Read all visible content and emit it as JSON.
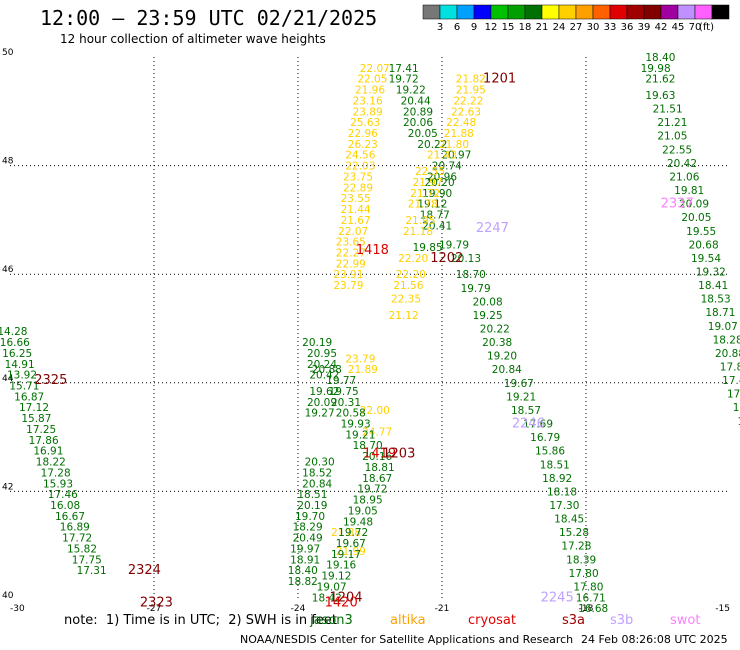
{
  "header": {
    "title": "12:00 – 23:59 UTC 02/21/2025",
    "subtitle": "12 hour collection of altimeter wave heights"
  },
  "colorbar": {
    "colors": [
      "#777777",
      "#00e0e0",
      "#00a0ff",
      "#0000ff",
      "#00c000",
      "#00a000",
      "#007000",
      "#ffff00",
      "#ffd000",
      "#ffa000",
      "#ff6000",
      "#e00000",
      "#a00000",
      "#800000",
      "#a000a0",
      "#c090ff",
      "#ff60ff",
      "#000000"
    ],
    "labels": [
      "3",
      "6",
      "9",
      "12",
      "15",
      "18",
      "21",
      "24",
      "27",
      "30",
      "33",
      "36",
      "39",
      "42",
      "45",
      "70",
      "(ft)"
    ]
  },
  "footer": {
    "note": "note:  1) Time is in UTC;  2) SWH is in feet",
    "credit": "NOAA/NESDIS Center for Satellite Applications and Research",
    "timestamp": "24 Feb 08:26:08 UTC 2025",
    "legend": [
      {
        "name": "jason3",
        "color": "#007000"
      },
      {
        "name": "altika",
        "color": "#ffa000"
      },
      {
        "name": "cryosat",
        "color": "#e00000"
      },
      {
        "name": "s3a",
        "color": "#a00000"
      },
      {
        "name": "s3b",
        "color": "#c0a0ff"
      },
      {
        "name": "swot",
        "color": "#ff80ff"
      }
    ]
  },
  "chart_data": {
    "type": "scatter",
    "xlim": [
      -30,
      -15
    ],
    "ylim": [
      40,
      50
    ],
    "xticks": [
      -30,
      -27,
      -24,
      -21,
      -18,
      -15
    ],
    "yticks": [
      40,
      42,
      44,
      46,
      48,
      50
    ],
    "grid": true,
    "passes": [
      {
        "satellite": "s3b",
        "color": "#007000",
        "points": [
          [
            -29.95,
            44.95,
            "14.28"
          ],
          [
            -29.9,
            44.75,
            "16.66"
          ],
          [
            -29.85,
            44.55,
            "16.25"
          ],
          [
            -29.8,
            44.35,
            "14.91"
          ],
          [
            -29.75,
            44.15,
            "13.92"
          ],
          [
            -29.7,
            43.95,
            "15.71"
          ],
          [
            -29.6,
            43.75,
            "16.87"
          ],
          [
            -29.5,
            43.55,
            "17.12"
          ],
          [
            -29.45,
            43.35,
            "15.87"
          ],
          [
            -29.35,
            43.15,
            "17.25"
          ],
          [
            -29.3,
            42.95,
            "17.86"
          ],
          [
            -29.2,
            42.75,
            "16.91"
          ],
          [
            -29.15,
            42.55,
            "18.22"
          ],
          [
            -29.05,
            42.35,
            "17.28"
          ],
          [
            -29.0,
            42.15,
            "15.93"
          ],
          [
            -28.9,
            41.95,
            "17.46"
          ],
          [
            -28.85,
            41.75,
            "16.08"
          ],
          [
            -28.75,
            41.55,
            "16.67"
          ],
          [
            -28.65,
            41.35,
            "16.89"
          ],
          [
            -28.6,
            41.15,
            "17.72"
          ],
          [
            -28.5,
            40.95,
            "15.82"
          ],
          [
            -28.4,
            40.75,
            "17.75"
          ],
          [
            -28.3,
            40.55,
            "17.31"
          ]
        ]
      },
      {
        "satellite": "s3a",
        "color": "#ffd000",
        "points": [
          [
            -22.4,
            49.8,
            "22.07"
          ],
          [
            -22.45,
            49.6,
            "22.05"
          ],
          [
            -22.5,
            49.4,
            "21.96"
          ],
          [
            -22.55,
            49.2,
            "23.16"
          ],
          [
            -22.55,
            49.0,
            "23.89"
          ],
          [
            -22.6,
            48.8,
            "25.63"
          ],
          [
            -22.65,
            48.6,
            "22.96"
          ],
          [
            -22.65,
            48.4,
            "26.23"
          ],
          [
            -22.7,
            48.2,
            "24.56"
          ],
          [
            -22.7,
            48.0,
            "22.03"
          ],
          [
            -22.75,
            47.8,
            "23.75"
          ],
          [
            -22.75,
            47.6,
            "22.89"
          ],
          [
            -22.8,
            47.4,
            "23.55"
          ],
          [
            -22.8,
            47.2,
            "21.44"
          ],
          [
            -22.8,
            47.0,
            "21.67"
          ],
          [
            -22.85,
            46.8,
            "22.07"
          ],
          [
            -22.9,
            46.6,
            "23.65"
          ],
          [
            -22.9,
            46.4,
            "22.27"
          ],
          [
            -22.9,
            46.2,
            "22.99"
          ],
          [
            -22.95,
            46.0,
            "23.91"
          ],
          [
            -22.95,
            45.8,
            "23.79"
          ],
          [
            -22.7,
            44.45,
            "23.79"
          ],
          [
            -22.65,
            44.25,
            "21.89"
          ],
          [
            -22.4,
            43.5,
            "22.00"
          ],
          [
            -22.35,
            43.1,
            "24.77"
          ],
          [
            -23.0,
            41.25,
            "21.88"
          ],
          [
            -22.9,
            40.9,
            "21.99"
          ]
        ]
      },
      {
        "satellite": "s3a",
        "color": "#007000",
        "points": [
          [
            -21.8,
            49.8,
            "17.41"
          ],
          [
            -21.8,
            49.6,
            "19.72"
          ],
          [
            -21.65,
            49.4,
            "19.22"
          ],
          [
            -21.55,
            49.2,
            "20.44"
          ],
          [
            -21.5,
            49.0,
            "20.89"
          ],
          [
            -21.5,
            48.8,
            "20.06"
          ],
          [
            -21.4,
            48.6,
            "20.05"
          ],
          [
            -21.2,
            48.4,
            "20.22"
          ],
          [
            -20.7,
            48.2,
            "20.97"
          ],
          [
            -20.9,
            48.0,
            "20.74"
          ],
          [
            -21.0,
            47.8,
            "20.96"
          ],
          [
            -21.05,
            47.7,
            "20.20"
          ],
          [
            -21.1,
            47.5,
            "19.90"
          ],
          [
            -21.2,
            47.3,
            "19.12"
          ],
          [
            -21.15,
            47.1,
            "18.77"
          ],
          [
            -21.1,
            46.9,
            "20.41"
          ],
          [
            -21.3,
            46.5,
            "19.85"
          ],
          [
            -20.75,
            46.55,
            "19.79"
          ],
          [
            -20.5,
            46.3,
            "20.13"
          ],
          [
            -20.4,
            46.0,
            "18.70"
          ],
          [
            -20.3,
            45.75,
            "19.79"
          ],
          [
            -20.05,
            45.5,
            "20.08"
          ],
          [
            -20.05,
            45.25,
            "19.25"
          ],
          [
            -19.9,
            45.0,
            "20.22"
          ],
          [
            -19.85,
            44.75,
            "20.38"
          ],
          [
            -19.75,
            44.5,
            "19.20"
          ],
          [
            -19.65,
            44.25,
            "20.84"
          ],
          [
            -19.4,
            44.0,
            "19.67"
          ],
          [
            -19.35,
            43.75,
            "19.21"
          ],
          [
            -19.25,
            43.5,
            "18.57"
          ],
          [
            -19.0,
            43.25,
            "17.69"
          ],
          [
            -18.85,
            43.0,
            "16.79"
          ],
          [
            -18.75,
            42.75,
            "15.86"
          ],
          [
            -18.65,
            42.5,
            "18.51"
          ],
          [
            -18.6,
            42.25,
            "18.92"
          ],
          [
            -18.5,
            42.0,
            "18.18"
          ],
          [
            -18.45,
            41.75,
            "17.30"
          ],
          [
            -18.35,
            41.5,
            "18.45"
          ],
          [
            -18.25,
            41.25,
            "15.28"
          ],
          [
            -18.2,
            41.0,
            "17.28"
          ],
          [
            -18.1,
            40.75,
            "18.39"
          ],
          [
            -18.05,
            40.5,
            "17.80"
          ],
          [
            -17.95,
            40.25,
            "17.80"
          ],
          [
            -17.9,
            40.05,
            "16.71"
          ],
          [
            -17.85,
            39.85,
            "16.68"
          ]
        ]
      },
      {
        "satellite": "jason3",
        "color": "#007000",
        "points": [
          [
            -23.6,
            44.75,
            "20.19"
          ],
          [
            -23.5,
            44.55,
            "20.95"
          ],
          [
            -23.5,
            44.35,
            "20.24"
          ],
          [
            -23.45,
            44.15,
            "20.42"
          ],
          [
            -23.4,
            44.25,
            "20.88"
          ],
          [
            -23.1,
            44.05,
            "19.77"
          ],
          [
            -23.05,
            43.85,
            "19.75"
          ],
          [
            -23.0,
            43.65,
            "20.31"
          ],
          [
            -22.9,
            43.45,
            "20.58"
          ],
          [
            -22.8,
            43.25,
            "19.93"
          ],
          [
            -22.7,
            43.05,
            "19.21"
          ],
          [
            -22.55,
            42.85,
            "18.70"
          ],
          [
            -22.35,
            42.65,
            "20.16"
          ],
          [
            -22.3,
            42.45,
            "18.81"
          ],
          [
            -22.35,
            42.25,
            "18.67"
          ],
          [
            -22.45,
            42.05,
            "19.72"
          ],
          [
            -22.55,
            41.85,
            "18.95"
          ],
          [
            -22.65,
            41.65,
            "19.05"
          ],
          [
            -22.75,
            41.45,
            "19.48"
          ],
          [
            -22.85,
            41.25,
            "19.72"
          ],
          [
            -22.9,
            41.05,
            "19.67"
          ],
          [
            -23.0,
            40.85,
            "19.17"
          ],
          [
            -23.1,
            40.65,
            "19.16"
          ],
          [
            -23.2,
            40.45,
            "19.12"
          ],
          [
            -23.3,
            40.25,
            "19.07"
          ],
          [
            -23.4,
            40.05,
            "18.42"
          ],
          [
            -23.45,
            43.85,
            "19.62"
          ],
          [
            -23.5,
            43.65,
            "20.09"
          ],
          [
            -23.55,
            43.45,
            "19.27"
          ],
          [
            -23.55,
            42.55,
            "20.30"
          ],
          [
            -23.6,
            42.35,
            "18.52"
          ],
          [
            -23.6,
            42.15,
            "20.84"
          ],
          [
            -23.7,
            41.95,
            "18.51"
          ],
          [
            -23.7,
            41.75,
            "20.19"
          ],
          [
            -23.75,
            41.55,
            "19.70"
          ],
          [
            -23.8,
            41.35,
            "18.29"
          ],
          [
            -23.8,
            41.15,
            "20.49"
          ],
          [
            -23.85,
            40.95,
            "19.97"
          ],
          [
            -23.85,
            40.75,
            "18.91"
          ],
          [
            -23.9,
            40.55,
            "18.40"
          ],
          [
            -23.9,
            40.35,
            "18.82"
          ]
        ]
      },
      {
        "satellite": "altika",
        "color": "#ffd000",
        "points": [
          [
            -20.4,
            49.6,
            "21.82"
          ],
          [
            -20.4,
            49.4,
            "21.95"
          ],
          [
            -20.45,
            49.2,
            "22.22"
          ],
          [
            -20.5,
            49.0,
            "22.63"
          ],
          [
            -20.6,
            48.8,
            "22.48"
          ],
          [
            -20.65,
            48.6,
            "21.88"
          ],
          [
            -20.75,
            48.4,
            "21.80"
          ],
          [
            -21.0,
            48.2,
            "21.43"
          ],
          [
            -21.25,
            47.9,
            "22.55"
          ],
          [
            -21.3,
            47.7,
            "21.97"
          ],
          [
            -21.35,
            47.5,
            "21.72"
          ],
          [
            -21.4,
            47.3,
            "21.78"
          ],
          [
            -21.45,
            47.0,
            "21.95"
          ],
          [
            -21.5,
            46.8,
            "21.18"
          ],
          [
            -21.6,
            46.3,
            "22.20"
          ],
          [
            -21.65,
            46.0,
            "22.20"
          ],
          [
            -21.7,
            45.8,
            "21.56"
          ],
          [
            -21.75,
            45.55,
            "22.35"
          ],
          [
            -21.8,
            45.25,
            "21.12"
          ]
        ]
      },
      {
        "satellite": "swot",
        "color": "#007000",
        "points": [
          [
            -16.45,
            50.0,
            "18.40"
          ],
          [
            -16.55,
            49.8,
            "19.98"
          ],
          [
            -16.45,
            49.6,
            "21.62"
          ],
          [
            -16.45,
            49.3,
            "19.63"
          ],
          [
            -16.3,
            49.05,
            "21.51"
          ],
          [
            -16.2,
            48.8,
            "21.21"
          ],
          [
            -16.2,
            48.55,
            "21.05"
          ],
          [
            -16.1,
            48.3,
            "22.55"
          ],
          [
            -16.0,
            48.05,
            "20.42"
          ],
          [
            -15.95,
            47.8,
            "21.06"
          ],
          [
            -15.85,
            47.55,
            "19.81"
          ],
          [
            -15.75,
            47.3,
            "20.09"
          ],
          [
            -15.7,
            47.05,
            "20.05"
          ],
          [
            -15.6,
            46.8,
            "19.55"
          ],
          [
            -15.55,
            46.55,
            "20.68"
          ],
          [
            -15.5,
            46.3,
            "19.54"
          ],
          [
            -15.4,
            46.05,
            "19.32"
          ],
          [
            -15.35,
            45.8,
            "18.41"
          ],
          [
            -15.3,
            45.55,
            "18.53"
          ],
          [
            -15.2,
            45.3,
            "18.71"
          ],
          [
            -15.15,
            45.05,
            "19.07"
          ],
          [
            -15.05,
            44.8,
            "18.28"
          ],
          [
            -15.0,
            44.55,
            "20.88"
          ],
          [
            -14.9,
            44.3,
            "17.87"
          ],
          [
            -14.85,
            44.05,
            "17.45"
          ],
          [
            -14.75,
            43.8,
            "17.54"
          ],
          [
            -14.7,
            43.55,
            "17.2"
          ],
          [
            -14.6,
            43.3,
            "17.3"
          ],
          [
            -14.6,
            43.05,
            "17"
          ]
        ]
      }
    ],
    "time_labels": [
      {
        "x": -29.15,
        "y": 44.05,
        "text": "2325",
        "color": "#800000"
      },
      {
        "x": -27.2,
        "y": 40.55,
        "text": "2324",
        "color": "#800000"
      },
      {
        "x": -26.95,
        "y": 39.95,
        "text": "2323",
        "color": "#800000"
      },
      {
        "x": -23.0,
        "y": 40.05,
        "text": "1204",
        "color": "#800000"
      },
      {
        "x": -23.1,
        "y": 39.95,
        "text": "1420",
        "color": "#e00000"
      },
      {
        "x": -22.45,
        "y": 46.45,
        "text": "1418",
        "color": "#e00000"
      },
      {
        "x": -22.3,
        "y": 42.7,
        "text": "1419",
        "color": "#e00000"
      },
      {
        "x": -21.9,
        "y": 42.7,
        "text": "1203",
        "color": "#800000"
      },
      {
        "x": -20.9,
        "y": 46.3,
        "text": "1202",
        "color": "#800000"
      },
      {
        "x": -19.8,
        "y": 49.6,
        "text": "1201",
        "color": "#800000"
      },
      {
        "x": -19.95,
        "y": 46.85,
        "text": "2247",
        "color": "#c0a0ff"
      },
      {
        "x": -19.2,
        "y": 43.25,
        "text": "2246",
        "color": "#c0a0ff"
      },
      {
        "x": -18.6,
        "y": 40.05,
        "text": "2245",
        "color": "#c0a0ff"
      },
      {
        "x": -16.1,
        "y": 47.3,
        "text": "2337",
        "color": "#ff80ff"
      }
    ]
  }
}
